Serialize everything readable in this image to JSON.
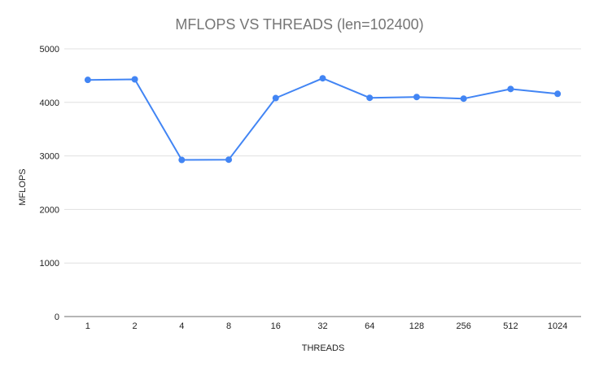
{
  "chart_data": {
    "type": "line",
    "title": "MFLOPS VS THREADS (len=102400)",
    "xlabel": "THREADS",
    "ylabel": "MFLOPS",
    "categories": [
      "1",
      "2",
      "4",
      "8",
      "16",
      "32",
      "64",
      "128",
      "256",
      "512",
      "1024"
    ],
    "series": [
      {
        "values": [
          4420,
          4430,
          2925,
          2930,
          4080,
          4450,
          4085,
          4100,
          4070,
          4250,
          4160
        ],
        "color": "#4285f4"
      }
    ],
    "ylim": [
      0,
      5000
    ],
    "yticks": [
      0,
      1000,
      2000,
      3000,
      4000,
      5000
    ],
    "grid": true,
    "legend": "none"
  }
}
